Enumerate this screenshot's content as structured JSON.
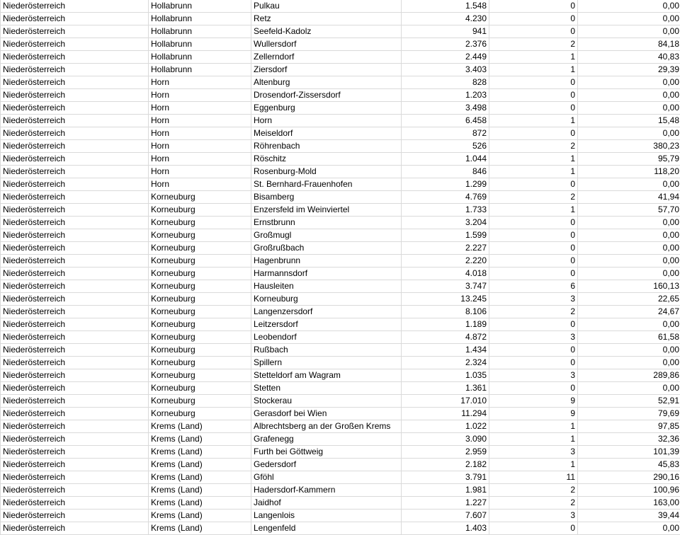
{
  "rows": [
    [
      "Niederösterreich",
      "Hollabrunn",
      "Pulkau",
      "1.548",
      "0",
      "0,00"
    ],
    [
      "Niederösterreich",
      "Hollabrunn",
      "Retz",
      "4.230",
      "0",
      "0,00"
    ],
    [
      "Niederösterreich",
      "Hollabrunn",
      "Seefeld-Kadolz",
      "941",
      "0",
      "0,00"
    ],
    [
      "Niederösterreich",
      "Hollabrunn",
      "Wullersdorf",
      "2.376",
      "2",
      "84,18"
    ],
    [
      "Niederösterreich",
      "Hollabrunn",
      "Zellerndorf",
      "2.449",
      "1",
      "40,83"
    ],
    [
      "Niederösterreich",
      "Hollabrunn",
      "Ziersdorf",
      "3.403",
      "1",
      "29,39"
    ],
    [
      "Niederösterreich",
      "Horn",
      "Altenburg",
      "828",
      "0",
      "0,00"
    ],
    [
      "Niederösterreich",
      "Horn",
      "Drosendorf-Zissersdorf",
      "1.203",
      "0",
      "0,00"
    ],
    [
      "Niederösterreich",
      "Horn",
      "Eggenburg",
      "3.498",
      "0",
      "0,00"
    ],
    [
      "Niederösterreich",
      "Horn",
      "Horn",
      "6.458",
      "1",
      "15,48"
    ],
    [
      "Niederösterreich",
      "Horn",
      "Meiseldorf",
      "872",
      "0",
      "0,00"
    ],
    [
      "Niederösterreich",
      "Horn",
      "Röhrenbach",
      "526",
      "2",
      "380,23"
    ],
    [
      "Niederösterreich",
      "Horn",
      "Röschitz",
      "1.044",
      "1",
      "95,79"
    ],
    [
      "Niederösterreich",
      "Horn",
      "Rosenburg-Mold",
      "846",
      "1",
      "118,20"
    ],
    [
      "Niederösterreich",
      "Horn",
      "St. Bernhard-Frauenhofen",
      "1.299",
      "0",
      "0,00"
    ],
    [
      "Niederösterreich",
      "Korneuburg",
      "Bisamberg",
      "4.769",
      "2",
      "41,94"
    ],
    [
      "Niederösterreich",
      "Korneuburg",
      "Enzersfeld im Weinviertel",
      "1.733",
      "1",
      "57,70"
    ],
    [
      "Niederösterreich",
      "Korneuburg",
      "Ernstbrunn",
      "3.204",
      "0",
      "0,00"
    ],
    [
      "Niederösterreich",
      "Korneuburg",
      "Großmugl",
      "1.599",
      "0",
      "0,00"
    ],
    [
      "Niederösterreich",
      "Korneuburg",
      "Großrußbach",
      "2.227",
      "0",
      "0,00"
    ],
    [
      "Niederösterreich",
      "Korneuburg",
      "Hagenbrunn",
      "2.220",
      "0",
      "0,00"
    ],
    [
      "Niederösterreich",
      "Korneuburg",
      "Harmannsdorf",
      "4.018",
      "0",
      "0,00"
    ],
    [
      "Niederösterreich",
      "Korneuburg",
      "Hausleiten",
      "3.747",
      "6",
      "160,13"
    ],
    [
      "Niederösterreich",
      "Korneuburg",
      "Korneuburg",
      "13.245",
      "3",
      "22,65"
    ],
    [
      "Niederösterreich",
      "Korneuburg",
      "Langenzersdorf",
      "8.106",
      "2",
      "24,67"
    ],
    [
      "Niederösterreich",
      "Korneuburg",
      "Leitzersdorf",
      "1.189",
      "0",
      "0,00"
    ],
    [
      "Niederösterreich",
      "Korneuburg",
      "Leobendorf",
      "4.872",
      "3",
      "61,58"
    ],
    [
      "Niederösterreich",
      "Korneuburg",
      "Rußbach",
      "1.434",
      "0",
      "0,00"
    ],
    [
      "Niederösterreich",
      "Korneuburg",
      "Spillern",
      "2.324",
      "0",
      "0,00"
    ],
    [
      "Niederösterreich",
      "Korneuburg",
      "Stetteldorf am Wagram",
      "1.035",
      "3",
      "289,86"
    ],
    [
      "Niederösterreich",
      "Korneuburg",
      "Stetten",
      "1.361",
      "0",
      "0,00"
    ],
    [
      "Niederösterreich",
      "Korneuburg",
      "Stockerau",
      "17.010",
      "9",
      "52,91"
    ],
    [
      "Niederösterreich",
      "Korneuburg",
      "Gerasdorf bei Wien",
      "11.294",
      "9",
      "79,69"
    ],
    [
      "Niederösterreich",
      "Krems (Land)",
      "Albrechtsberg an der Großen Krems",
      "1.022",
      "1",
      "97,85"
    ],
    [
      "Niederösterreich",
      "Krems (Land)",
      "Grafenegg",
      "3.090",
      "1",
      "32,36"
    ],
    [
      "Niederösterreich",
      "Krems (Land)",
      "Furth bei Göttweig",
      "2.959",
      "3",
      "101,39"
    ],
    [
      "Niederösterreich",
      "Krems (Land)",
      "Gedersdorf",
      "2.182",
      "1",
      "45,83"
    ],
    [
      "Niederösterreich",
      "Krems (Land)",
      "Gföhl",
      "3.791",
      "11",
      "290,16"
    ],
    [
      "Niederösterreich",
      "Krems (Land)",
      "Hadersdorf-Kammern",
      "1.981",
      "2",
      "100,96"
    ],
    [
      "Niederösterreich",
      "Krems (Land)",
      "Jaidhof",
      "1.227",
      "2",
      "163,00"
    ],
    [
      "Niederösterreich",
      "Krems (Land)",
      "Langenlois",
      "7.607",
      "3",
      "39,44"
    ],
    [
      "Niederösterreich",
      "Krems (Land)",
      "Lengenfeld",
      "1.403",
      "0",
      "0,00"
    ]
  ]
}
